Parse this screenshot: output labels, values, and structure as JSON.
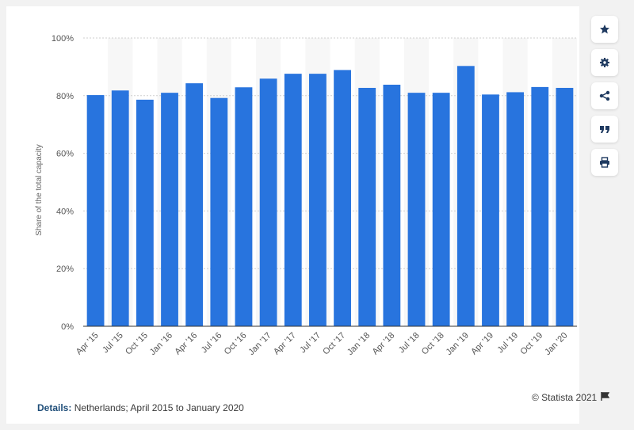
{
  "chart_data": {
    "type": "bar",
    "categories": [
      "Apr '15",
      "Jul '15",
      "Oct '15",
      "Jan '16",
      "Apr '16",
      "Jul '16",
      "Oct '16",
      "Jan '17",
      "Apr '17",
      "Jul '17",
      "Oct '17",
      "Jan '18",
      "Apr '18",
      "Jul '18",
      "Oct '18",
      "Jan '19",
      "Apr '19",
      "Jul '19",
      "Oct '19",
      "Jan '20"
    ],
    "values": [
      80.2,
      81.8,
      78.6,
      81.0,
      84.3,
      79.2,
      82.9,
      85.9,
      87.6,
      87.6,
      88.9,
      82.7,
      83.8,
      81.0,
      81.0,
      90.3,
      80.4,
      81.2,
      83.0,
      82.7
    ],
    "ylabel": "Share of the total capacity",
    "y_ticks": [
      "0%",
      "20%",
      "40%",
      "60%",
      "80%",
      "100%"
    ],
    "ylim": [
      0,
      100
    ],
    "grid": true,
    "bar_color": "#2874de"
  },
  "footer": {
    "details_label": "Details:",
    "details_text": " Netherlands; April 2015 to January 2020",
    "credit": "© Statista 2021"
  },
  "toolbar": {
    "icons": [
      "star-icon",
      "gear-icon",
      "share-icon",
      "quote-icon",
      "print-icon"
    ]
  }
}
